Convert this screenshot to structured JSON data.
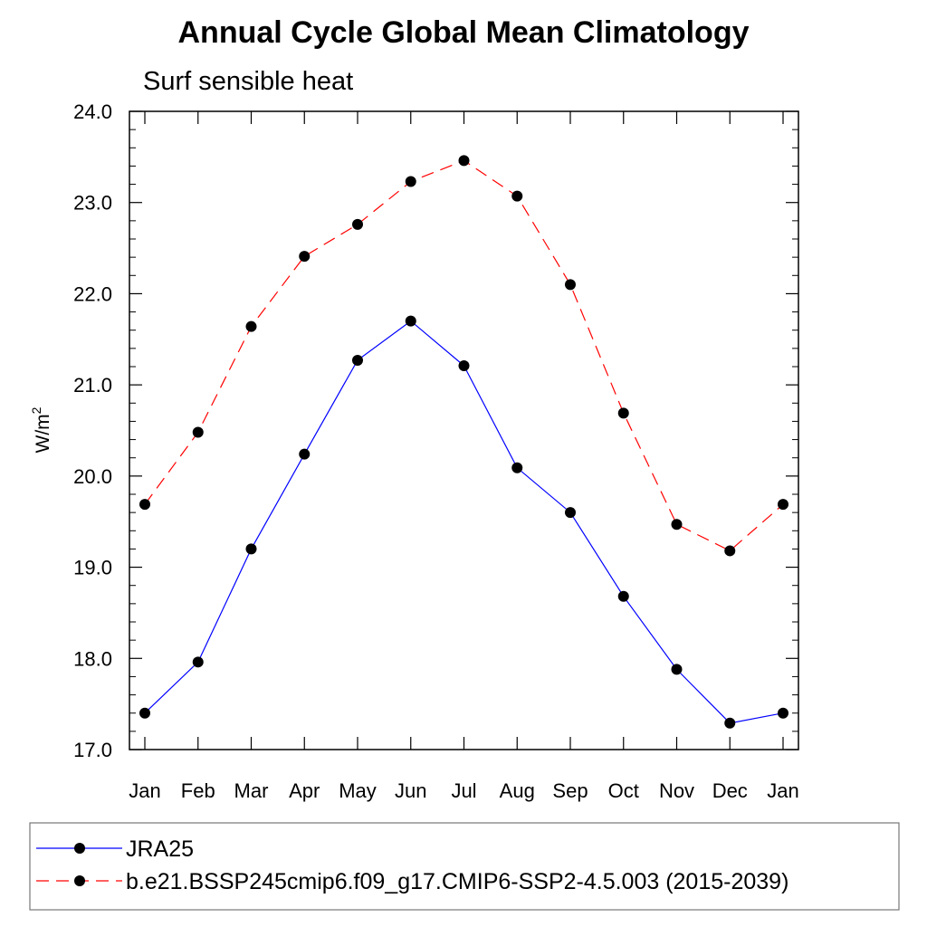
{
  "chart_data": {
    "type": "line",
    "title": "Annual Cycle Global Mean Climatology",
    "subtitle": "Surf sensible heat",
    "ylabel": "W/m",
    "ylabel_superscript": "2",
    "xlabel": "",
    "categories": [
      "Jan",
      "Feb",
      "Mar",
      "Apr",
      "May",
      "Jun",
      "Jul",
      "Aug",
      "Sep",
      "Oct",
      "Nov",
      "Dec",
      "Jan"
    ],
    "ylim": [
      17.0,
      24.0
    ],
    "yticks": [
      "17.0",
      "18.0",
      "19.0",
      "20.0",
      "21.0",
      "22.0",
      "23.0",
      "24.0"
    ],
    "series": [
      {
        "name": "JRA25",
        "color": "#0000ff",
        "dash": "solid",
        "values": [
          17.4,
          17.96,
          19.2,
          20.24,
          21.27,
          21.7,
          21.21,
          20.09,
          19.6,
          18.68,
          17.88,
          17.29,
          17.4
        ]
      },
      {
        "name": "b.e21.BSSP245cmip6.f09_g17.CMIP6-SSP2-4.5.003 (2015-2039)",
        "color": "#ff0000",
        "dash": "dashed",
        "values": [
          19.69,
          20.48,
          21.64,
          22.41,
          22.76,
          23.23,
          23.46,
          23.07,
          22.1,
          20.69,
          19.47,
          19.18,
          19.69
        ]
      }
    ],
    "legend_position": "bottom",
    "grid": false
  }
}
